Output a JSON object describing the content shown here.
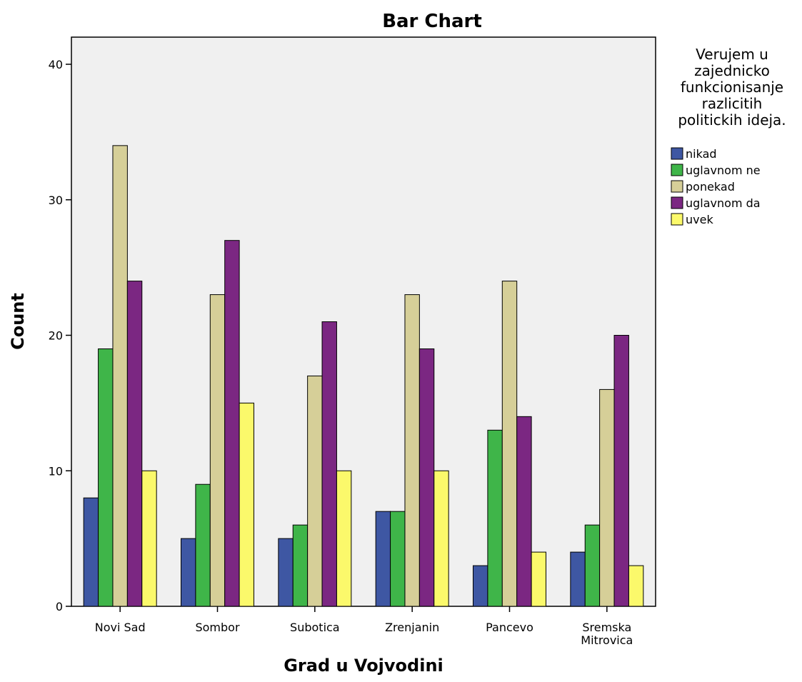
{
  "chart_data": {
    "type": "bar",
    "title": "Bar Chart",
    "xlabel": "Grad u Vojvodini",
    "ylabel": "Count",
    "ylim": [
      0,
      42
    ],
    "yticks": [
      0,
      10,
      20,
      30,
      40
    ],
    "categories": [
      "Novi Sad",
      "Sombor",
      "Subotica",
      "Zrenjanin",
      "Pancevo",
      "Sremska Mitrovica"
    ],
    "category_label_lines": [
      [
        "Novi Sad"
      ],
      [
        "Sombor"
      ],
      [
        "Subotica"
      ],
      [
        "Zrenjanin"
      ],
      [
        "Pancevo"
      ],
      [
        "Sremska",
        "Mitrovica"
      ]
    ],
    "legend_title": "Verujem u zajednicko funkcionisanje razlicitih politickih ideja.",
    "legend_title_lines": [
      "Verujem u",
      "zajednicko",
      "funkcionisanje",
      "razlicitih",
      "politickih ideja."
    ],
    "legend_position": "right",
    "grid": false,
    "series": [
      {
        "name": "nikad",
        "color": "#3e57a3",
        "values": [
          8,
          5,
          5,
          7,
          3,
          4
        ]
      },
      {
        "name": "uglavnom ne",
        "color": "#3fb549",
        "values": [
          19,
          9,
          6,
          7,
          13,
          6
        ]
      },
      {
        "name": "ponekad",
        "color": "#d6cf98",
        "values": [
          34,
          23,
          17,
          23,
          24,
          16
        ]
      },
      {
        "name": "uglavnom da",
        "color": "#7b2782",
        "values": [
          24,
          27,
          21,
          19,
          14,
          20
        ]
      },
      {
        "name": "uvek",
        "color": "#fbf96b",
        "values": [
          10,
          15,
          10,
          10,
          4,
          3
        ]
      }
    ],
    "plot_background": "#f0f0f0"
  }
}
